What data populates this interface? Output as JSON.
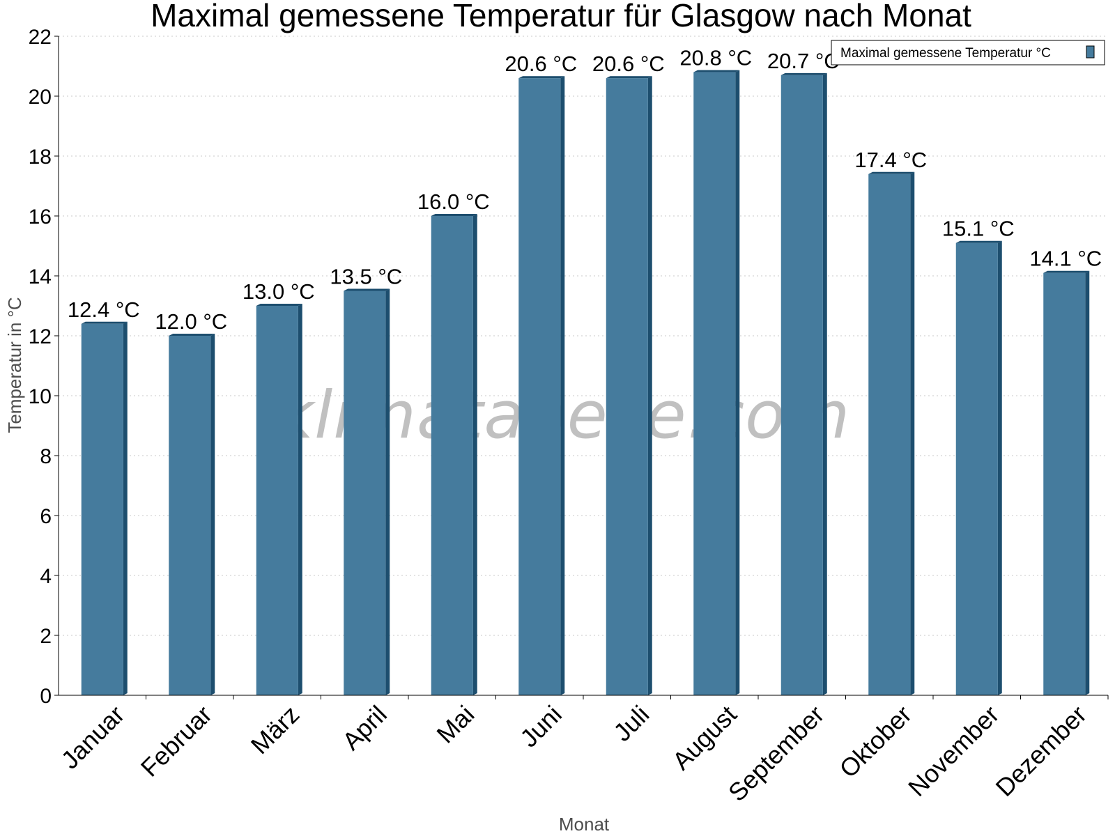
{
  "chart_data": {
    "type": "bar",
    "title": "Maximal gemessene Temperatur für Glasgow nach Monat",
    "xlabel": "Monat",
    "ylabel": "Temperatur in °C",
    "ylim": [
      0,
      22
    ],
    "ytick_step": 2,
    "grid": true,
    "legend_position": "top-right",
    "categories": [
      "Januar",
      "Februar",
      "März",
      "April",
      "Mai",
      "Juni",
      "Juli",
      "August",
      "September",
      "Oktober",
      "November",
      "Dezember"
    ],
    "series": [
      {
        "name": "Maximal gemessene Temperatur °C",
        "values": [
          12.4,
          12.0,
          13.0,
          13.5,
          16.0,
          20.6,
          20.6,
          20.8,
          20.7,
          17.4,
          15.1,
          14.1
        ],
        "value_labels": [
          "12.4 °C",
          "12.0 °C",
          "13.0 °C",
          "13.5 °C",
          "16.0 °C",
          "20.6 °C",
          "20.6 °C",
          "20.8 °C",
          "20.7 °C",
          "17.4 °C",
          "15.1 °C",
          "14.1 °C"
        ]
      }
    ]
  },
  "colors": {
    "bar_face": "#457b9d",
    "bar_side": "#1d4e6e"
  },
  "watermark": "klimatabelle.com"
}
